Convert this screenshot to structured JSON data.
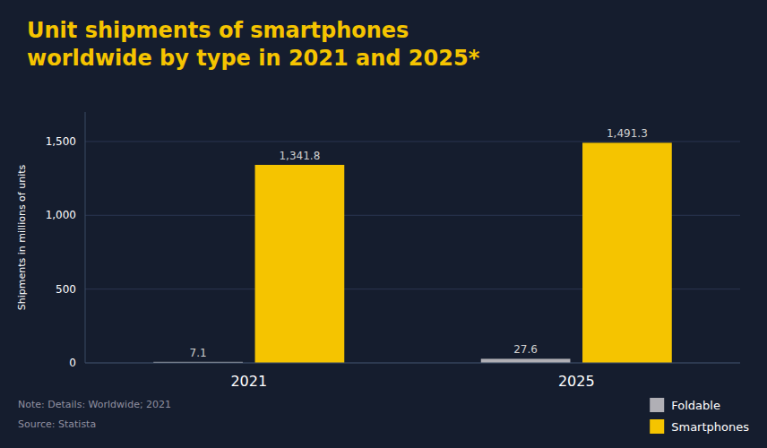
{
  "chart_data": {
    "type": "bar",
    "title": "Unit shipments of smartphones\nworldwide by type in 2021 and 2025*",
    "y_label": "Shipments in millions of units",
    "categories": [
      "2021",
      "2025"
    ],
    "series": [
      {
        "name": "Foldable",
        "color": "#b0afb5",
        "values": [
          7.1,
          27.6
        ]
      },
      {
        "name": "Smartphones",
        "color": "#f5c400",
        "values": [
          1341.8,
          1491.3
        ],
        "value_labels": [
          "1,341.8",
          "1,491.3"
        ]
      }
    ],
    "ylim": [
      0,
      1700
    ],
    "yticks": [
      0,
      500,
      {
        "value": 1000,
        "label": "1,000"
      },
      {
        "value": 1500,
        "label": "1,500"
      }
    ],
    "grid": true,
    "data_labels": true,
    "legend": "bottom-right",
    "annotations": [
      "Note: Details: Worldwide; 2021",
      "Source: Statista"
    ]
  }
}
